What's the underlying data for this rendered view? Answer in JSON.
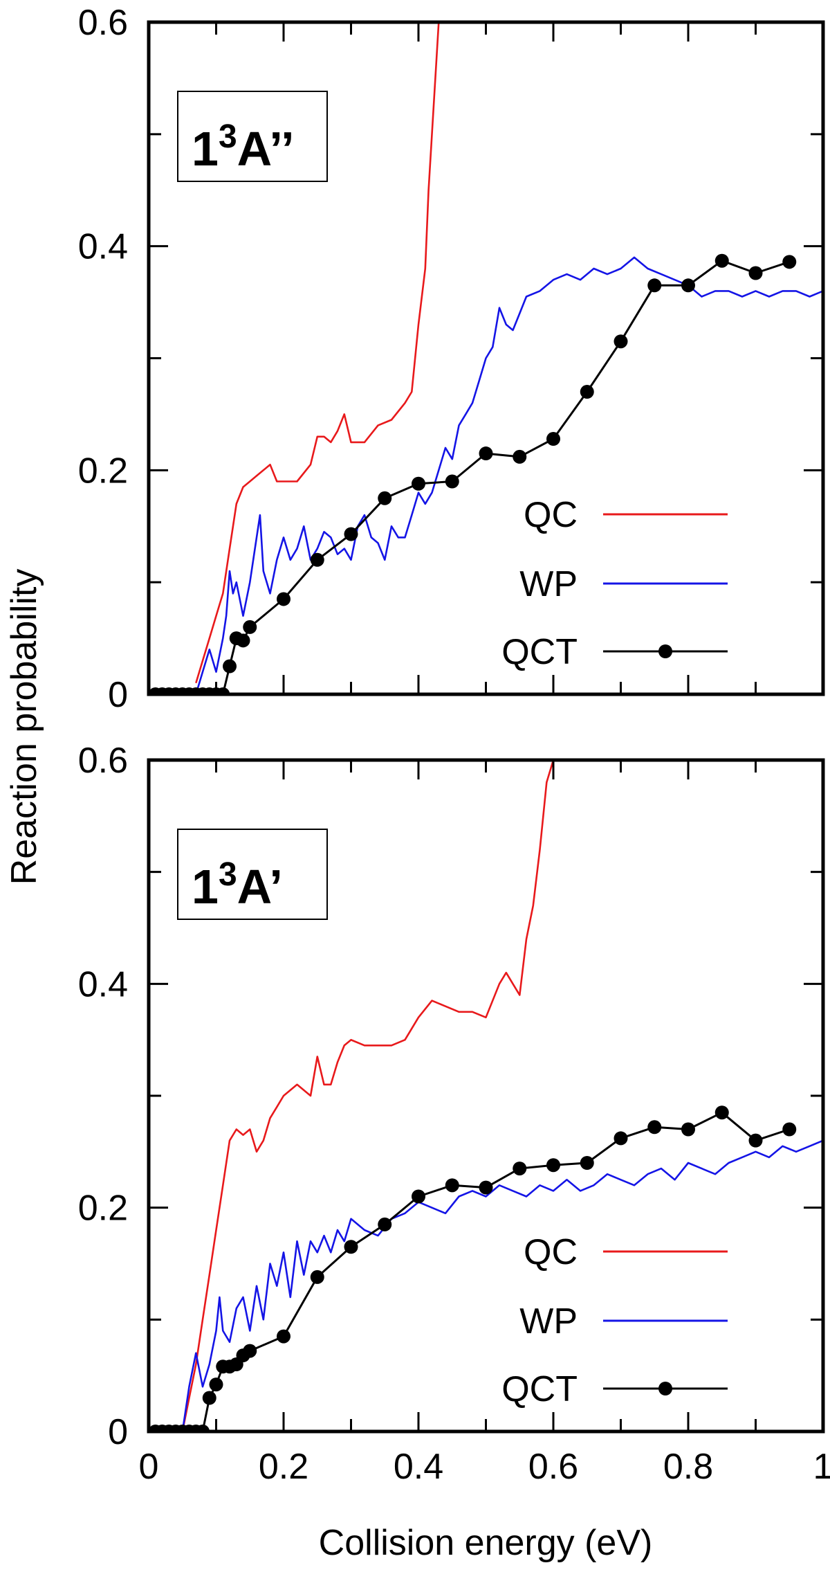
{
  "chart_data": {
    "type": "line",
    "xlabel": "Collision energy (eV)",
    "ylabel": "Reaction probability",
    "xlim": [
      0,
      1
    ],
    "x_ticks": [
      "0",
      "0.2",
      "0.4",
      "0.6",
      "0.8",
      "1"
    ],
    "panels": [
      {
        "label_main": "1",
        "label_sup": "3",
        "label_rest": "A’’",
        "ylim": [
          0,
          0.6
        ],
        "y_ticks": [
          "0",
          "0.2",
          "0.4",
          "0.6"
        ],
        "y_tick_values": [
          0,
          0.2,
          0.4,
          0.6
        ],
        "legend_placement": "lower-right",
        "series": [
          {
            "name": "QC",
            "color": "#e8191b",
            "style": "line",
            "x": [
              0.07,
              0.08,
              0.09,
              0.1,
              0.11,
              0.12,
              0.13,
              0.14,
              0.15,
              0.16,
              0.17,
              0.18,
              0.19,
              0.2,
              0.22,
              0.24,
              0.25,
              0.26,
              0.27,
              0.28,
              0.29,
              0.3,
              0.32,
              0.34,
              0.36,
              0.38,
              0.39,
              0.4,
              0.41,
              0.415,
              0.42,
              0.425,
              0.43
            ],
            "y": [
              0.01,
              0.03,
              0.05,
              0.07,
              0.09,
              0.13,
              0.17,
              0.185,
              0.19,
              0.195,
              0.2,
              0.205,
              0.19,
              0.19,
              0.19,
              0.205,
              0.23,
              0.23,
              0.225,
              0.235,
              0.25,
              0.225,
              0.225,
              0.24,
              0.245,
              0.26,
              0.27,
              0.33,
              0.38,
              0.45,
              0.5,
              0.55,
              0.6
            ]
          },
          {
            "name": "WP",
            "color": "#1414e6",
            "style": "line",
            "x": [
              0.07,
              0.08,
              0.09,
              0.1,
              0.11,
              0.115,
              0.12,
              0.125,
              0.13,
              0.14,
              0.15,
              0.16,
              0.165,
              0.17,
              0.18,
              0.19,
              0.2,
              0.21,
              0.22,
              0.23,
              0.24,
              0.25,
              0.26,
              0.27,
              0.28,
              0.29,
              0.3,
              0.31,
              0.32,
              0.33,
              0.34,
              0.35,
              0.36,
              0.37,
              0.38,
              0.39,
              0.4,
              0.41,
              0.42,
              0.43,
              0.44,
              0.45,
              0.46,
              0.47,
              0.48,
              0.49,
              0.5,
              0.51,
              0.52,
              0.53,
              0.54,
              0.55,
              0.56,
              0.58,
              0.6,
              0.62,
              0.64,
              0.66,
              0.68,
              0.7,
              0.72,
              0.74,
              0.76,
              0.78,
              0.8,
              0.82,
              0.84,
              0.86,
              0.88,
              0.9,
              0.92,
              0.94,
              0.96,
              0.98,
              1.0
            ],
            "y": [
              0.0,
              0.02,
              0.04,
              0.02,
              0.05,
              0.07,
              0.11,
              0.09,
              0.1,
              0.07,
              0.1,
              0.14,
              0.16,
              0.11,
              0.09,
              0.12,
              0.14,
              0.12,
              0.13,
              0.15,
              0.12,
              0.13,
              0.145,
              0.14,
              0.125,
              0.13,
              0.12,
              0.15,
              0.16,
              0.14,
              0.135,
              0.12,
              0.15,
              0.14,
              0.14,
              0.16,
              0.18,
              0.17,
              0.18,
              0.2,
              0.22,
              0.21,
              0.24,
              0.25,
              0.26,
              0.28,
              0.3,
              0.31,
              0.345,
              0.33,
              0.325,
              0.34,
              0.355,
              0.36,
              0.37,
              0.375,
              0.37,
              0.38,
              0.375,
              0.38,
              0.39,
              0.38,
              0.375,
              0.37,
              0.365,
              0.355,
              0.36,
              0.36,
              0.355,
              0.36,
              0.355,
              0.36,
              0.36,
              0.355,
              0.36
            ]
          },
          {
            "name": "QCT",
            "color": "#000000",
            "style": "line-points",
            "x": [
              0.01,
              0.02,
              0.03,
              0.04,
              0.05,
              0.06,
              0.07,
              0.08,
              0.09,
              0.1,
              0.11,
              0.12,
              0.13,
              0.14,
              0.15,
              0.2,
              0.25,
              0.3,
              0.35,
              0.4,
              0.45,
              0.5,
              0.55,
              0.6,
              0.65,
              0.7,
              0.75,
              0.8,
              0.85,
              0.9,
              0.95
            ],
            "y": [
              0,
              0,
              0,
              0,
              0,
              0,
              0,
              0,
              0,
              0,
              0,
              0.025,
              0.05,
              0.048,
              0.06,
              0.085,
              0.12,
              0.143,
              0.175,
              0.188,
              0.19,
              0.215,
              0.212,
              0.228,
              0.27,
              0.315,
              0.365,
              0.365,
              0.387,
              0.376,
              0.386
            ]
          }
        ]
      },
      {
        "label_main": "1",
        "label_sup": "3",
        "label_rest": "A’",
        "ylim": [
          0,
          0.6
        ],
        "y_ticks": [
          "0",
          "0.2",
          "0.4",
          "0.6"
        ],
        "y_tick_values": [
          0,
          0.2,
          0.4,
          0.6
        ],
        "legend_placement": "lower-right",
        "series": [
          {
            "name": "QC",
            "color": "#e8191b",
            "style": "line",
            "x": [
              0.05,
              0.06,
              0.07,
              0.08,
              0.09,
              0.1,
              0.11,
              0.12,
              0.13,
              0.14,
              0.15,
              0.16,
              0.17,
              0.18,
              0.19,
              0.2,
              0.22,
              0.24,
              0.25,
              0.26,
              0.27,
              0.28,
              0.29,
              0.3,
              0.32,
              0.34,
              0.36,
              0.38,
              0.4,
              0.42,
              0.44,
              0.46,
              0.48,
              0.5,
              0.52,
              0.53,
              0.54,
              0.55,
              0.56,
              0.57,
              0.58,
              0.59,
              0.6
            ],
            "y": [
              0.0,
              0.03,
              0.06,
              0.1,
              0.14,
              0.18,
              0.22,
              0.26,
              0.27,
              0.265,
              0.27,
              0.25,
              0.26,
              0.28,
              0.29,
              0.3,
              0.31,
              0.3,
              0.335,
              0.31,
              0.31,
              0.33,
              0.345,
              0.35,
              0.345,
              0.345,
              0.345,
              0.35,
              0.37,
              0.385,
              0.38,
              0.375,
              0.375,
              0.37,
              0.4,
              0.41,
              0.4,
              0.39,
              0.44,
              0.47,
              0.52,
              0.58,
              0.6
            ]
          },
          {
            "name": "WP",
            "color": "#1414e6",
            "style": "line",
            "x": [
              0.05,
              0.06,
              0.07,
              0.08,
              0.09,
              0.1,
              0.105,
              0.11,
              0.12,
              0.13,
              0.14,
              0.15,
              0.16,
              0.17,
              0.18,
              0.19,
              0.2,
              0.21,
              0.22,
              0.23,
              0.24,
              0.25,
              0.26,
              0.27,
              0.28,
              0.29,
              0.3,
              0.32,
              0.34,
              0.36,
              0.38,
              0.4,
              0.42,
              0.44,
              0.46,
              0.48,
              0.5,
              0.52,
              0.54,
              0.56,
              0.58,
              0.6,
              0.62,
              0.64,
              0.66,
              0.68,
              0.7,
              0.72,
              0.74,
              0.76,
              0.78,
              0.8,
              0.82,
              0.84,
              0.86,
              0.88,
              0.9,
              0.92,
              0.94,
              0.96,
              0.98,
              1.0
            ],
            "y": [
              0.0,
              0.04,
              0.07,
              0.04,
              0.06,
              0.09,
              0.12,
              0.09,
              0.08,
              0.11,
              0.12,
              0.09,
              0.13,
              0.1,
              0.15,
              0.13,
              0.16,
              0.12,
              0.17,
              0.14,
              0.17,
              0.16,
              0.175,
              0.16,
              0.18,
              0.17,
              0.19,
              0.18,
              0.175,
              0.19,
              0.195,
              0.205,
              0.2,
              0.195,
              0.21,
              0.215,
              0.21,
              0.22,
              0.215,
              0.21,
              0.22,
              0.215,
              0.225,
              0.215,
              0.22,
              0.23,
              0.225,
              0.22,
              0.23,
              0.235,
              0.225,
              0.24,
              0.235,
              0.23,
              0.24,
              0.245,
              0.25,
              0.245,
              0.255,
              0.25,
              0.255,
              0.26
            ]
          },
          {
            "name": "QCT",
            "color": "#000000",
            "style": "line-points",
            "x": [
              0.01,
              0.02,
              0.03,
              0.04,
              0.05,
              0.06,
              0.07,
              0.08,
              0.09,
              0.1,
              0.11,
              0.12,
              0.13,
              0.14,
              0.15,
              0.2,
              0.25,
              0.3,
              0.35,
              0.4,
              0.45,
              0.5,
              0.55,
              0.6,
              0.65,
              0.7,
              0.75,
              0.8,
              0.85,
              0.9,
              0.95
            ],
            "y": [
              0,
              0,
              0,
              0,
              0,
              0,
              0,
              0,
              0.03,
              0.042,
              0.058,
              0.058,
              0.06,
              0.068,
              0.072,
              0.085,
              0.138,
              0.165,
              0.185,
              0.21,
              0.22,
              0.218,
              0.235,
              0.238,
              0.24,
              0.262,
              0.272,
              0.27,
              0.285,
              0.26,
              0.27
            ]
          }
        ]
      }
    ]
  }
}
